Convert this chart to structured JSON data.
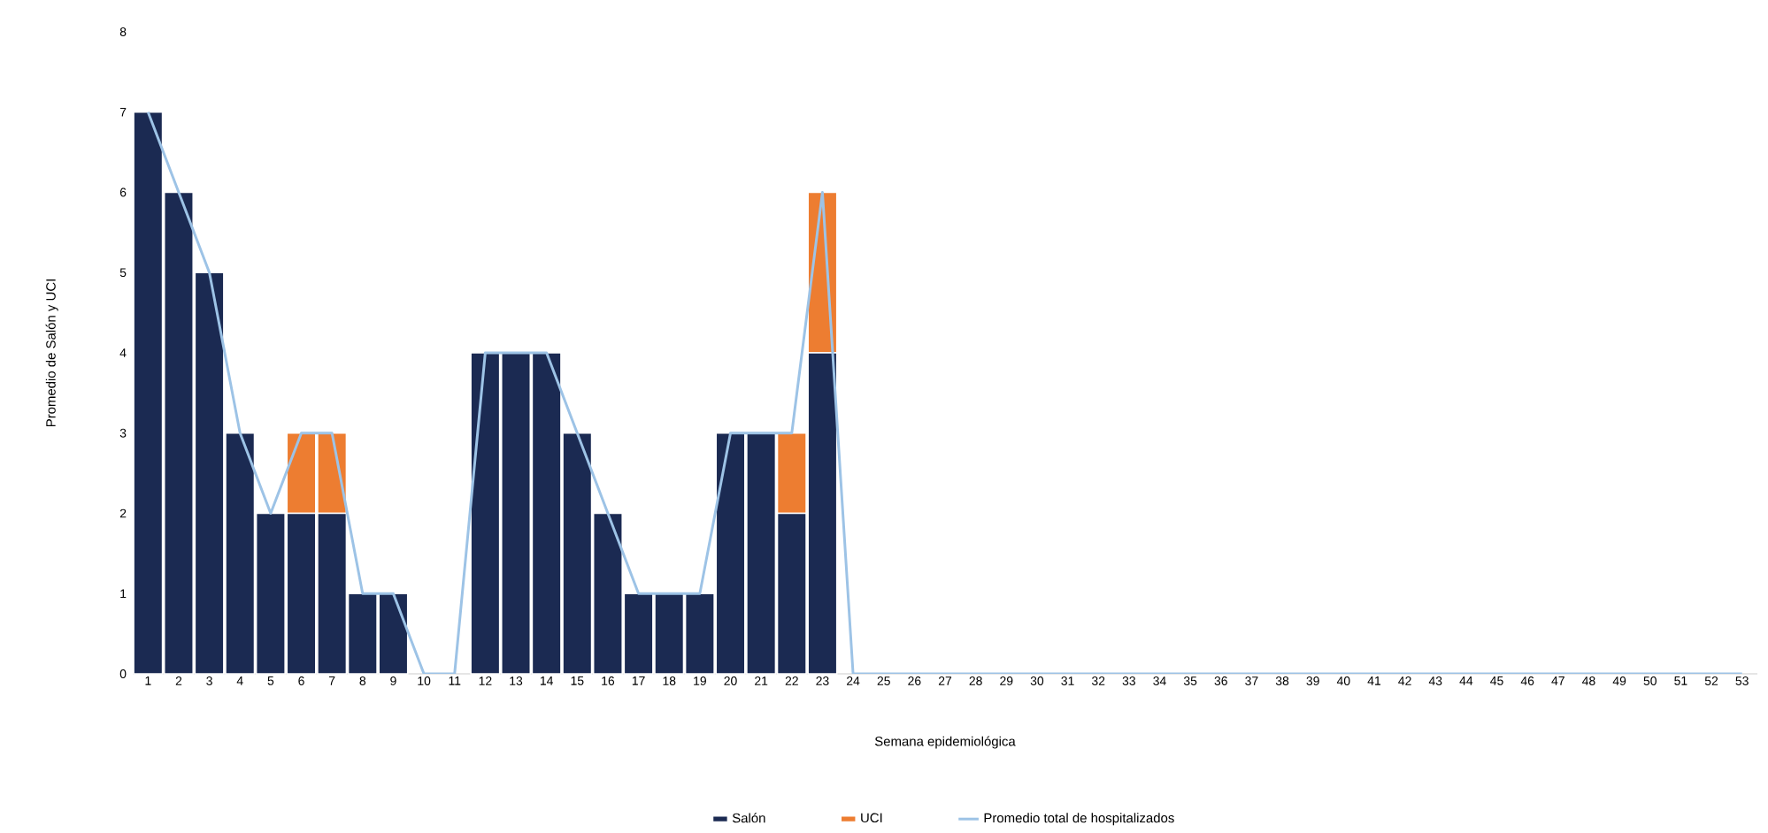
{
  "chart_data": {
    "type": "bar",
    "stacked": true,
    "xlabel": "Semana epidemiológica",
    "ylabel": "Promedio de Salón y UCI",
    "categories": [
      "1",
      "2",
      "3",
      "4",
      "5",
      "6",
      "7",
      "8",
      "9",
      "10",
      "11",
      "12",
      "13",
      "14",
      "15",
      "16",
      "17",
      "18",
      "19",
      "20",
      "21",
      "22",
      "23",
      "24",
      "25",
      "26",
      "27",
      "28",
      "29",
      "30",
      "31",
      "32",
      "33",
      "34",
      "35",
      "36",
      "37",
      "38",
      "39",
      "40",
      "41",
      "42",
      "43",
      "44",
      "45",
      "46",
      "47",
      "48",
      "49",
      "50",
      "51",
      "52",
      "53"
    ],
    "series": [
      {
        "name": "Salón",
        "color": "#1b2a52",
        "values": [
          7,
          6,
          5,
          3,
          2,
          2,
          2,
          1,
          1,
          0,
          0,
          4,
          4,
          4,
          3,
          2,
          1,
          1,
          1,
          3,
          3,
          2,
          4,
          0,
          0,
          0,
          0,
          0,
          0,
          0,
          0,
          0,
          0,
          0,
          0,
          0,
          0,
          0,
          0,
          0,
          0,
          0,
          0,
          0,
          0,
          0,
          0,
          0,
          0,
          0,
          0,
          0,
          0
        ]
      },
      {
        "name": "UCI",
        "color": "#ed7d31",
        "values": [
          0,
          0,
          0,
          0,
          0,
          1,
          1,
          0,
          0,
          0,
          0,
          0,
          0,
          0,
          0,
          0,
          0,
          0,
          0,
          0,
          0,
          1,
          2,
          0,
          0,
          0,
          0,
          0,
          0,
          0,
          0,
          0,
          0,
          0,
          0,
          0,
          0,
          0,
          0,
          0,
          0,
          0,
          0,
          0,
          0,
          0,
          0,
          0,
          0,
          0,
          0,
          0,
          0
        ]
      },
      {
        "name": "Promedio total de hospitalizados",
        "type": "line",
        "color": "#9dc3e6",
        "values": [
          7,
          6,
          5,
          3,
          2,
          3,
          3,
          1,
          1,
          0,
          0,
          4,
          4,
          4,
          3,
          2,
          1,
          1,
          1,
          3,
          3,
          3,
          6,
          0,
          0,
          0,
          0,
          0,
          0,
          0,
          0,
          0,
          0,
          0,
          0,
          0,
          0,
          0,
          0,
          0,
          0,
          0,
          0,
          0,
          0,
          0,
          0,
          0,
          0,
          0,
          0,
          0,
          0
        ]
      }
    ],
    "ylim": [
      0,
      8
    ],
    "yticks": [
      0,
      1,
      2,
      3,
      4,
      5,
      6,
      7,
      8
    ],
    "grid": false,
    "legend": "bottom"
  }
}
